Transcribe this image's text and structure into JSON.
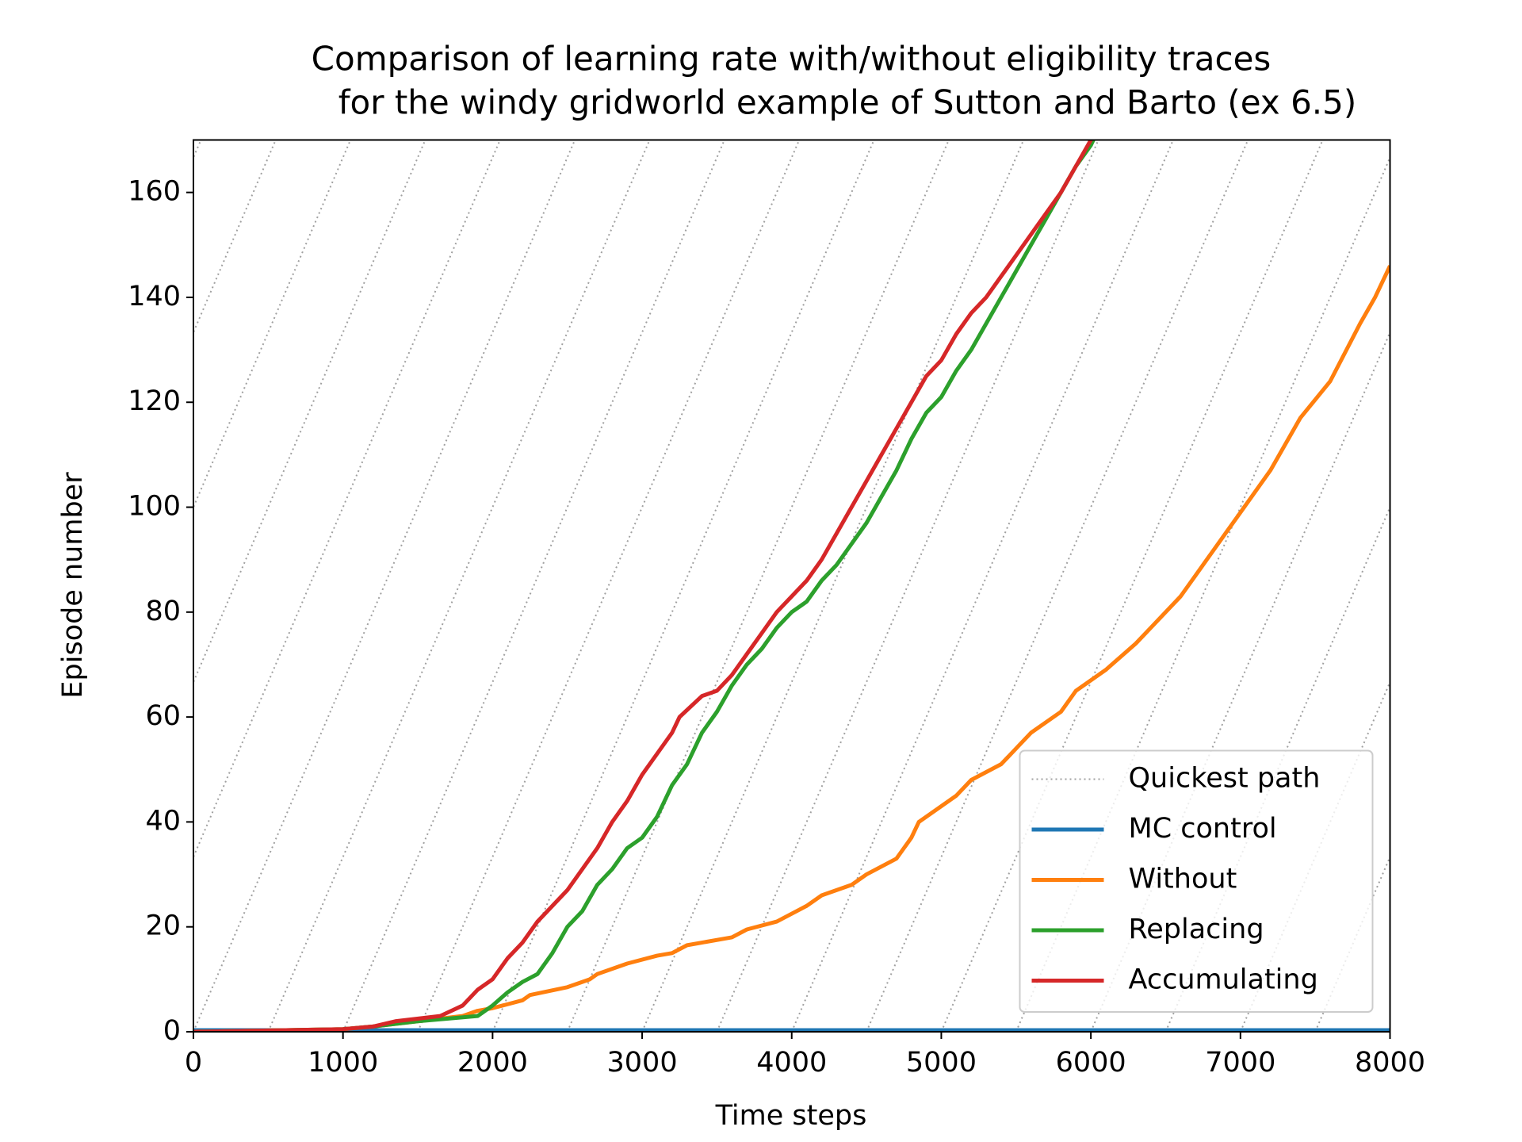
{
  "chart_data": {
    "type": "line",
    "title": [
      "Comparison of learning rate with/without eligibility traces",
      "for the windy gridworld example of Sutton and Barto (ex 6.5)"
    ],
    "xlabel": "Time steps",
    "ylabel": "Episode number",
    "xlim": [
      0,
      8000
    ],
    "ylim": [
      0,
      170
    ],
    "xticks": [
      0,
      1000,
      2000,
      3000,
      4000,
      5000,
      6000,
      7000,
      8000
    ],
    "yticks": [
      0,
      20,
      40,
      60,
      80,
      100,
      120,
      140,
      160
    ],
    "legend": "lower right",
    "quickest_path": {
      "name": "Quickest path",
      "color": "#a0a0a0",
      "lines": [
        {
          "x": [
            -2500,
            50
          ],
          "values": [
            0,
            170
          ]
        },
        {
          "x": [
            -2000,
            550
          ],
          "values": [
            0,
            170
          ]
        },
        {
          "x": [
            -1500,
            1050
          ],
          "values": [
            0,
            170
          ]
        },
        {
          "x": [
            -1000,
            1550
          ],
          "values": [
            0,
            170
          ]
        },
        {
          "x": [
            -500,
            2050
          ],
          "values": [
            0,
            170
          ]
        },
        {
          "x": [
            0,
            2550
          ],
          "values": [
            0,
            170
          ]
        },
        {
          "x": [
            500,
            3050
          ],
          "values": [
            0,
            170
          ]
        },
        {
          "x": [
            1000,
            3550
          ],
          "values": [
            0,
            170
          ]
        },
        {
          "x": [
            1500,
            4050
          ],
          "values": [
            0,
            170
          ]
        },
        {
          "x": [
            2000,
            4550
          ],
          "values": [
            0,
            170
          ]
        },
        {
          "x": [
            2500,
            5050
          ],
          "values": [
            0,
            170
          ]
        },
        {
          "x": [
            3000,
            5550
          ],
          "values": [
            0,
            170
          ]
        },
        {
          "x": [
            3500,
            6050
          ],
          "values": [
            0,
            170
          ]
        },
        {
          "x": [
            4000,
            6550
          ],
          "values": [
            0,
            170
          ]
        },
        {
          "x": [
            4500,
            7050
          ],
          "values": [
            0,
            170
          ]
        },
        {
          "x": [
            5000,
            7550
          ],
          "values": [
            0,
            170
          ]
        },
        {
          "x": [
            5500,
            8050
          ],
          "values": [
            0,
            170
          ]
        },
        {
          "x": [
            6000,
            8550
          ],
          "values": [
            0,
            170
          ]
        },
        {
          "x": [
            6500,
            9050
          ],
          "values": [
            0,
            170
          ]
        },
        {
          "x": [
            7000,
            9550
          ],
          "values": [
            0,
            170
          ]
        },
        {
          "x": [
            7500,
            10050
          ],
          "values": [
            0,
            170
          ]
        }
      ]
    },
    "series": [
      {
        "name": "MC control",
        "color": "#1f77b4",
        "x": [
          0,
          8000
        ],
        "values": [
          0.3,
          0.3
        ]
      },
      {
        "name": "Without",
        "color": "#ff7f0e",
        "x": [
          0,
          1000,
          1200,
          1500,
          1800,
          1900,
          2000,
          2200,
          2250,
          2500,
          2650,
          2700,
          2900,
          3100,
          3200,
          3300,
          3400,
          3600,
          3700,
          3900,
          4100,
          4200,
          4400,
          4500,
          4700,
          4800,
          4850,
          5000,
          5100,
          5200,
          5400,
          5500,
          5600,
          5800,
          5900,
          6100,
          6300,
          6400,
          6600,
          6700,
          6900,
          7000,
          7200,
          7400,
          7600,
          7800,
          7900,
          8000
        ],
        "values": [
          0,
          0.5,
          1,
          2,
          3,
          4,
          4.5,
          6,
          7,
          8.5,
          10,
          11,
          13,
          14.5,
          15,
          16.5,
          17,
          18,
          19.5,
          21,
          24,
          26,
          28,
          30,
          33,
          37,
          40,
          43,
          45,
          48,
          51,
          54,
          57,
          61,
          65,
          69,
          74,
          77,
          83,
          87,
          95,
          99,
          107,
          117,
          124,
          135,
          140,
          146
        ]
      },
      {
        "name": "Replacing",
        "color": "#2ca02c",
        "x": [
          0,
          1000,
          1200,
          1500,
          1900,
          2000,
          2100,
          2200,
          2300,
          2400,
          2500,
          2600,
          2700,
          2800,
          2900,
          3000,
          3100,
          3200,
          3300,
          3400,
          3500,
          3600,
          3700,
          3800,
          3900,
          4000,
          4100,
          4200,
          4300,
          4400,
          4500,
          4600,
          4700,
          4800,
          4900,
          5000,
          5100,
          5200,
          5300,
          5400,
          5500,
          5600,
          5700,
          5800,
          5900,
          6000,
          6050
        ],
        "values": [
          0,
          0.5,
          1,
          2,
          3,
          5,
          7.5,
          9.5,
          11,
          15,
          20,
          23,
          28,
          31,
          35,
          37,
          41,
          47,
          51,
          57,
          61,
          66,
          70,
          73,
          77,
          80,
          82,
          86,
          89,
          93,
          97,
          102,
          107,
          113,
          118,
          121,
          126,
          130,
          135,
          140,
          145,
          150,
          155,
          160,
          165,
          169,
          172
        ]
      },
      {
        "name": "Accumulating",
        "color": "#d62728",
        "x": [
          0,
          1000,
          1200,
          1350,
          1650,
          1800,
          1900,
          2000,
          2100,
          2200,
          2300,
          2400,
          2500,
          2600,
          2700,
          2800,
          2900,
          3000,
          3100,
          3200,
          3250,
          3400,
          3500,
          3600,
          3700,
          3800,
          3900,
          4000,
          4100,
          4200,
          4300,
          4400,
          4500,
          4600,
          4700,
          4800,
          4900,
          5000,
          5100,
          5200,
          5300,
          5400,
          5500,
          5600,
          5700,
          5800,
          5900,
          6000,
          6050
        ],
        "values": [
          0,
          0.5,
          1,
          2,
          3,
          5,
          8,
          10,
          14,
          17,
          21,
          24,
          27,
          31,
          35,
          40,
          44,
          49,
          53,
          57,
          60,
          64,
          65,
          68,
          72,
          76,
          80,
          83,
          86,
          90,
          95,
          100,
          105,
          110,
          115,
          120,
          125,
          128,
          133,
          137,
          140,
          144,
          148,
          152,
          156,
          160,
          165,
          170,
          172
        ]
      }
    ]
  }
}
